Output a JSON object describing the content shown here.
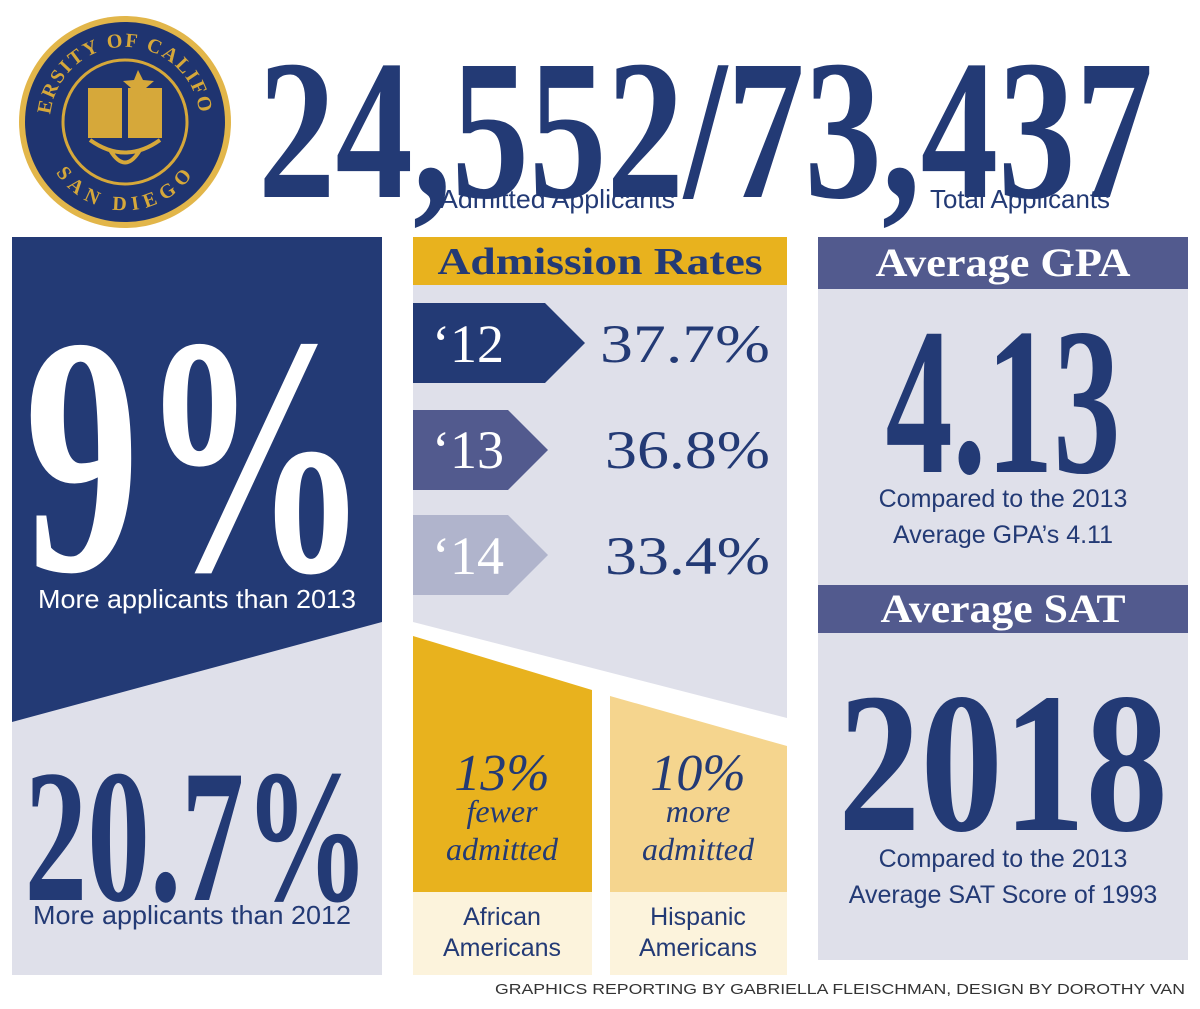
{
  "seal": {
    "top": "UNIVERSITY OF CALIFORNIA",
    "bottom": "SAN DIEGO"
  },
  "header": {
    "figure": "24,552/73,437",
    "admitted_label": "Admitted Applicants",
    "total_label": "Total Applicants"
  },
  "left_panel": {
    "top_figure": "9%",
    "top_caption": "More applicants than 2013",
    "bottom_figure": "20.7%",
    "bottom_caption": "More applicants than 2012"
  },
  "admission_rates": {
    "title": "Admission Rates",
    "rows": [
      {
        "year": "‘12",
        "rate": "37.7%"
      },
      {
        "year": "‘13",
        "rate": "36.8%"
      },
      {
        "year": "‘14",
        "rate": "33.4%"
      }
    ],
    "groups": [
      {
        "figure": "13%",
        "line1": "fewer",
        "line2": "admitted",
        "label1": "African",
        "label2": "Americans"
      },
      {
        "figure": "10%",
        "line1": "more",
        "line2": "admitted",
        "label1": "Hispanic",
        "label2": "Americans"
      }
    ]
  },
  "gpa": {
    "title": "Average GPA",
    "figure": "4.13",
    "caption1": "Compared to the 2013",
    "caption2": "Average GPA’s 4.11"
  },
  "sat": {
    "title": "Average SAT",
    "figure": "2018",
    "caption1": "Compared to the 2013",
    "caption2": "Average SAT Score of 1993"
  },
  "credit": "GRAPHICS REPORTING BY GABRIELLA FLEISCHMAN, DESIGN BY DOROTHY VAN"
}
